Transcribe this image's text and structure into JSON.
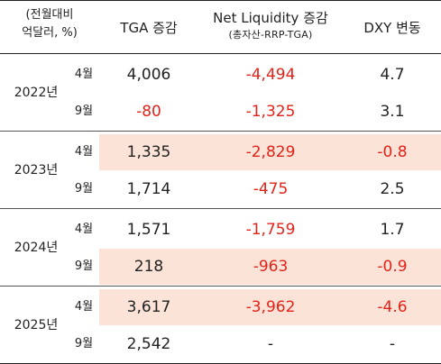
{
  "header": {
    "unit_line1": "(전월대비",
    "unit_line2": "억달러, %)",
    "col_tga": "TGA 증감",
    "col_netliq": "Net Liquidity 증감",
    "col_netliq_sub": "(총자산-RRP-TGA)",
    "col_dxy": "DXY 변동"
  },
  "colors": {
    "negative": "#e2231a",
    "highlight": "#fbe3d7"
  },
  "groups": [
    {
      "year": "2022년",
      "rows": [
        {
          "month": "4월",
          "tga": "4,006",
          "netliq": "-4,494",
          "dxy": "4.7",
          "highlight": false
        },
        {
          "month": "9월",
          "tga": "-80",
          "netliq": "-1,325",
          "dxy": "3.1",
          "highlight": false
        }
      ]
    },
    {
      "year": "2023년",
      "rows": [
        {
          "month": "4월",
          "tga": "1,335",
          "netliq": "-2,829",
          "dxy": "-0.8",
          "highlight": true
        },
        {
          "month": "9월",
          "tga": "1,714",
          "netliq": "-475",
          "dxy": "2.5",
          "highlight": false
        }
      ]
    },
    {
      "year": "2024년",
      "rows": [
        {
          "month": "4월",
          "tga": "1,571",
          "netliq": "-1,759",
          "dxy": "1.7",
          "highlight": false
        },
        {
          "month": "9월",
          "tga": "218",
          "netliq": "-963",
          "dxy": "-0.9",
          "highlight": true
        }
      ]
    },
    {
      "year": "2025년",
      "rows": [
        {
          "month": "4월",
          "tga": "3,617",
          "netliq": "-3,962",
          "dxy": "-4.6",
          "highlight": true
        },
        {
          "month": "9월",
          "tga": "2,542",
          "netliq": "-",
          "dxy": "-",
          "highlight": false
        }
      ]
    }
  ]
}
